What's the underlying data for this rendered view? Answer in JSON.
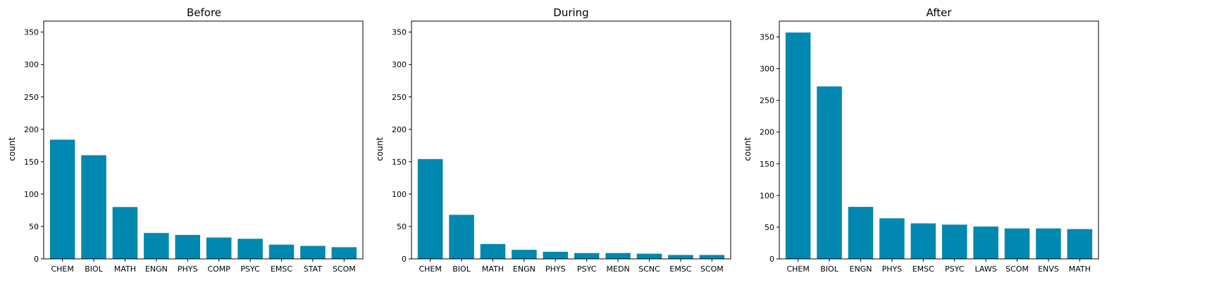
{
  "colors": {
    "bar": "#0088b0",
    "axis": "#000000"
  },
  "chart_data": [
    {
      "type": "bar",
      "title": "Before",
      "xlabel": "",
      "ylabel": "count",
      "ylim": [
        0,
        367
      ],
      "yticks": [
        0,
        50,
        100,
        150,
        200,
        250,
        300,
        350
      ],
      "categories": [
        "CHEM",
        "BIOL",
        "MATH",
        "ENGN",
        "PHYS",
        "COMP",
        "PSYC",
        "EMSC",
        "STAT",
        "SCOM"
      ],
      "values": [
        184,
        160,
        80,
        40,
        37,
        33,
        31,
        22,
        20,
        18
      ],
      "grid": false
    },
    {
      "type": "bar",
      "title": "During",
      "xlabel": "",
      "ylabel": "count",
      "ylim": [
        0,
        367
      ],
      "yticks": [
        0,
        50,
        100,
        150,
        200,
        250,
        300,
        350
      ],
      "categories": [
        "CHEM",
        "BIOL",
        "MATH",
        "ENGN",
        "PHYS",
        "PSYC",
        "MEDN",
        "SCNC",
        "EMSC",
        "SCOM"
      ],
      "values": [
        154,
        68,
        23,
        14,
        11,
        9,
        9,
        8,
        6,
        6
      ],
      "grid": false
    },
    {
      "type": "bar",
      "title": "After",
      "xlabel": "",
      "ylabel": "count",
      "ylim": [
        0,
        375
      ],
      "yticks": [
        0,
        50,
        100,
        150,
        200,
        250,
        300,
        350
      ],
      "categories": [
        "CHEM",
        "BIOL",
        "ENGN",
        "PHYS",
        "EMSC",
        "PSYC",
        "LAWS",
        "SCOM",
        "ENVS",
        "MATH"
      ],
      "values": [
        357,
        272,
        82,
        64,
        56,
        54,
        51,
        48,
        48,
        47
      ],
      "grid": false
    }
  ]
}
